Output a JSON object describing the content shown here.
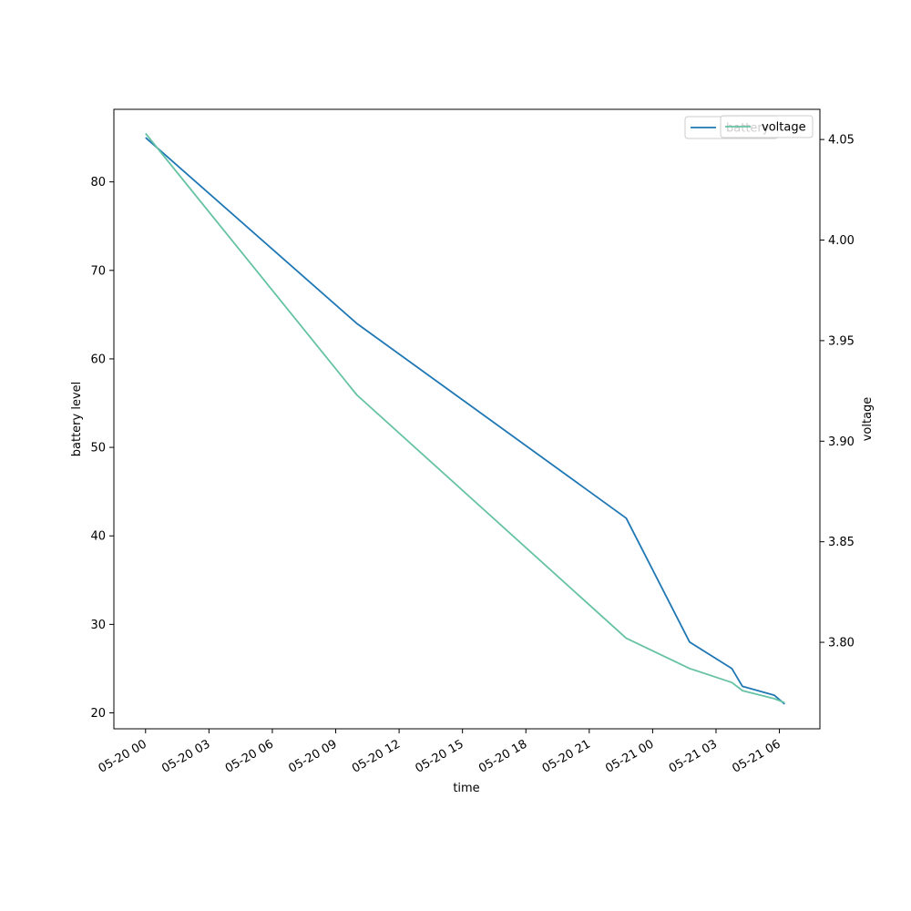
{
  "chart_data": {
    "type": "line",
    "xlabel": "time",
    "ylabel": "battery level",
    "y2label": "voltage",
    "x_ticks": [
      "05-20 00",
      "05-20 03",
      "05-20 06",
      "05-20 09",
      "05-20 12",
      "05-20 15",
      "05-20 18",
      "05-20 21",
      "05-21 00",
      "05-21 03",
      "05-21 06"
    ],
    "x_range": [
      "05-19 22:30",
      "05-21 07:55"
    ],
    "y_ticks": [
      20,
      30,
      40,
      50,
      60,
      70,
      80
    ],
    "y_range": [
      18.2,
      88.2
    ],
    "y2_ticks": [
      "3.80",
      "3.85",
      "3.90",
      "3.95",
      "4.00",
      "4.05"
    ],
    "y2_range": [
      3.757,
      4.065
    ],
    "legend_position": "top-right",
    "series": [
      {
        "name": "battery",
        "axis": "left",
        "color": "#1f77b4",
        "x": [
          "05-20 00:00",
          "05-20 10:00",
          "05-20 22:45",
          "05-21 01:45",
          "05-21 03:45",
          "05-21 04:15",
          "05-21 05:45",
          "05-21 06:15"
        ],
        "values": [
          85,
          64,
          42,
          28,
          25,
          23,
          22,
          21
        ]
      },
      {
        "name": "voltage",
        "axis": "right",
        "color": "#66c2a5",
        "x": [
          "05-20 00:00",
          "05-20 10:00",
          "05-20 22:45",
          "05-21 01:45",
          "05-21 03:45",
          "05-21 04:15",
          "05-21 05:45",
          "05-21 06:15"
        ],
        "values": [
          4.053,
          3.923,
          3.802,
          3.787,
          3.78,
          3.776,
          3.772,
          3.77
        ]
      }
    ]
  }
}
